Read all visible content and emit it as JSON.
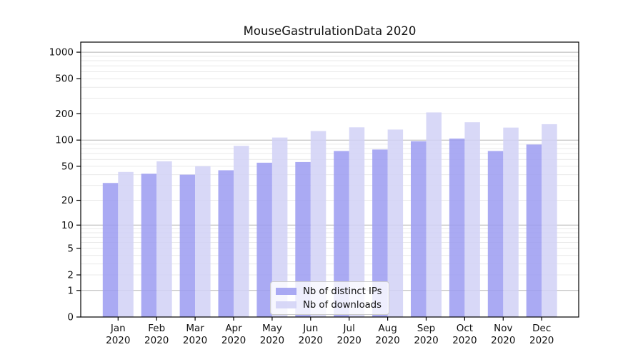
{
  "title": "MouseGastrulationData 2020",
  "legend": {
    "items": [
      {
        "label": "Nb of distinct IPs"
      },
      {
        "label": "Nb of downloads"
      }
    ]
  },
  "chart_data": {
    "type": "bar",
    "title": "MouseGastrulationData 2020",
    "categories": [
      "Jan 2020",
      "Feb 2020",
      "Mar 2020",
      "Apr 2020",
      "May 2020",
      "Jun 2020",
      "Jul 2020",
      "Aug 2020",
      "Sep 2020",
      "Oct 2020",
      "Nov 2020",
      "Dec 2020"
    ],
    "series": [
      {
        "name": "Nb of distinct IPs",
        "color": "#9b9bf1",
        "values": [
          32,
          41,
          40,
          45,
          55,
          56,
          75,
          78,
          97,
          104,
          75,
          89
        ]
      },
      {
        "name": "Nb of downloads",
        "color": "#d1d1f6",
        "values": [
          43,
          57,
          50,
          86,
          107,
          127,
          140,
          132,
          207,
          160,
          139,
          152
        ]
      }
    ],
    "yscale": "log1p",
    "y_tick_values": [
      0,
      1,
      2,
      5,
      10,
      20,
      50,
      100,
      200,
      500,
      1000
    ],
    "ylim": [
      0,
      1300
    ],
    "xlabel": "",
    "ylabel": "",
    "grid": {
      "on": true,
      "major_at": [
        1,
        10,
        100,
        1000
      ],
      "major_color": "#b4b4b4",
      "minor_color": "#e9e9e9"
    },
    "legend_position": "lower-center",
    "axis_color": "#000000",
    "text_color": "#111111"
  }
}
